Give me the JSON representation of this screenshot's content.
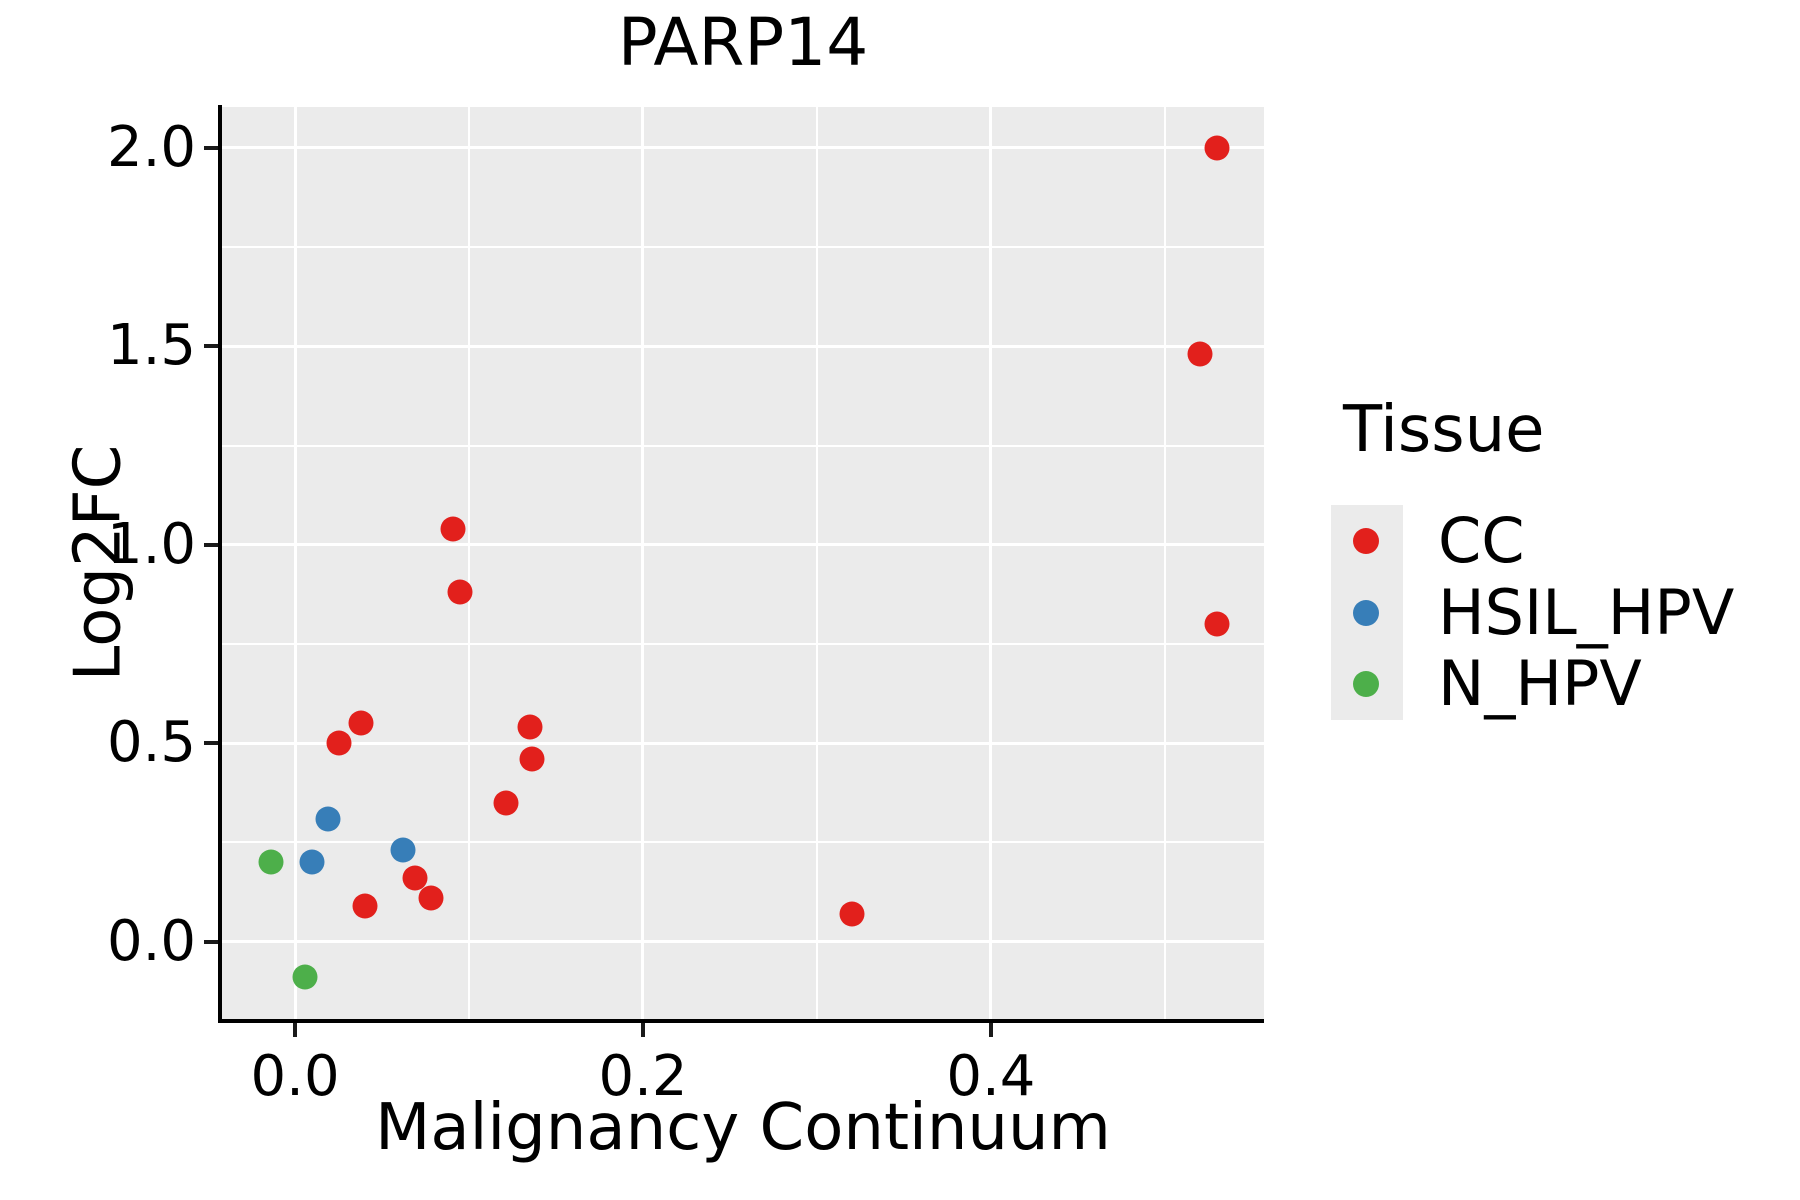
{
  "title": "PARP14",
  "axes": {
    "x": {
      "label": "Malignancy Continuum",
      "tick_labels": [
        "0.0",
        "0.2",
        "0.4"
      ],
      "tick_values": [
        0.0,
        0.2,
        0.4
      ],
      "minor_gridlines": [
        0.1,
        0.3,
        0.5
      ],
      "range": [
        -0.042,
        0.557
      ]
    },
    "y": {
      "label": "Log2FC",
      "tick_labels": [
        "2.0",
        "1.5",
        "1.0",
        "0.5",
        "0.0"
      ],
      "tick_values": [
        2.0,
        1.5,
        1.0,
        0.5,
        0.0
      ],
      "minor_gridlines": [
        0.25,
        0.75,
        1.25,
        1.75
      ],
      "range": [
        -0.195,
        2.103
      ]
    }
  },
  "legend": {
    "title": "Tissue",
    "items": [
      {
        "label": "CC",
        "color": "#e2201c"
      },
      {
        "label": "HSIL_HPV",
        "color": "#377eb8"
      },
      {
        "label": "N_HPV",
        "color": "#4daf4a"
      }
    ]
  },
  "colors": {
    "panel_background": "#ebebeb",
    "gridline": "#ffffff",
    "axis_line": "#000000",
    "cc_red": "#e2201c",
    "hsil_hpv_blue": "#377eb8",
    "n_hpv_green": "#4daf4a"
  },
  "chart_data": {
    "type": "scatter",
    "title": "PARP14",
    "xlabel": "Malignancy Continuum",
    "ylabel": "Log2FC",
    "xlim": [
      -0.042,
      0.557
    ],
    "ylim": [
      -0.195,
      2.103
    ],
    "x_ticks": [
      0.0,
      0.2,
      0.4
    ],
    "y_ticks": [
      0.0,
      0.5,
      1.0,
      1.5,
      2.0
    ],
    "grid": "white major and minor gridlines on grey panel (ggplot style)",
    "legend_position": "right",
    "legend_title": "Tissue",
    "series": [
      {
        "name": "CC",
        "color": "#e2201c",
        "points": [
          [
            0.53,
            2.0
          ],
          [
            0.52,
            1.48
          ],
          [
            0.53,
            0.8
          ],
          [
            0.091,
            1.04
          ],
          [
            0.095,
            0.88
          ],
          [
            0.038,
            0.55
          ],
          [
            0.025,
            0.5
          ],
          [
            0.135,
            0.54
          ],
          [
            0.136,
            0.46
          ],
          [
            0.121,
            0.35
          ],
          [
            0.069,
            0.16
          ],
          [
            0.078,
            0.11
          ],
          [
            0.04,
            0.09
          ],
          [
            0.32,
            0.07
          ]
        ]
      },
      {
        "name": "HSIL_HPV",
        "color": "#377eb8",
        "points": [
          [
            0.019,
            0.31
          ],
          [
            0.01,
            0.2
          ],
          [
            0.062,
            0.23
          ]
        ]
      },
      {
        "name": "N_HPV",
        "color": "#4daf4a",
        "points": [
          [
            -0.014,
            0.2
          ],
          [
            0.006,
            -0.09
          ]
        ]
      }
    ]
  }
}
